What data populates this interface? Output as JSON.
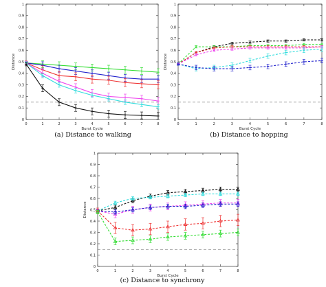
{
  "chart_data": [
    {
      "type": "line",
      "caption": "(a)  Distance to walking",
      "xlabel": "Burst Cycle",
      "ylabel": "Distance",
      "xlim": [
        0,
        8
      ],
      "ylim": [
        0,
        1
      ],
      "xticks": [
        "0",
        "1",
        "2",
        "3",
        "4",
        "5",
        "6",
        "7",
        "8"
      ],
      "yticks": [
        "0",
        "0.1",
        "0.2",
        "0.3",
        "0.4",
        "0.5",
        "0.6",
        "0.7",
        "0.8",
        "0.9",
        "1"
      ],
      "reference_line": 0.15,
      "x": [
        0,
        1,
        2,
        3,
        4,
        5,
        6,
        7,
        8
      ],
      "series": [
        {
          "color": "#33dd33",
          "dashed": false,
          "marker": "plus",
          "values": [
            0.49,
            0.48,
            0.47,
            0.46,
            0.45,
            0.44,
            0.43,
            0.42,
            0.41
          ],
          "err": 0.03
        },
        {
          "color": "#2222cc",
          "dashed": false,
          "marker": "plus",
          "values": [
            0.49,
            0.47,
            0.44,
            0.42,
            0.4,
            0.38,
            0.36,
            0.35,
            0.35
          ],
          "err": 0.03
        },
        {
          "color": "#ee3333",
          "dashed": false,
          "marker": "plus",
          "values": [
            0.49,
            0.43,
            0.38,
            0.37,
            0.35,
            0.34,
            0.32,
            0.31,
            0.3
          ],
          "err": 0.035
        },
        {
          "color": "#ee44ee",
          "dashed": false,
          "marker": "plus",
          "values": [
            0.49,
            0.4,
            0.33,
            0.28,
            0.23,
            0.2,
            0.19,
            0.18,
            0.16
          ],
          "err": 0.03
        },
        {
          "color": "#33dddd",
          "dashed": false,
          "marker": "plus",
          "values": [
            0.49,
            0.38,
            0.3,
            0.25,
            0.21,
            0.18,
            0.15,
            0.13,
            0.11
          ],
          "err": 0.02
        },
        {
          "color": "#111111",
          "dashed": false,
          "marker": "plus",
          "values": [
            0.48,
            0.27,
            0.15,
            0.1,
            0.07,
            0.05,
            0.04,
            0.035,
            0.03
          ],
          "err": 0.03
        }
      ]
    },
    {
      "type": "line",
      "caption": "(b)  Distance to hopping",
      "xlabel": "Burst Cycle",
      "ylabel": "Distance",
      "xlim": [
        0,
        8
      ],
      "ylim": [
        0,
        1
      ],
      "xticks": [
        "0",
        "1",
        "2",
        "3",
        "4",
        "5",
        "6",
        "7",
        "8"
      ],
      "yticks": [
        "0",
        "0.1",
        "0.2",
        "0.3",
        "0.4",
        "0.5",
        "0.6",
        "0.7",
        "0.8",
        "0.9",
        "1"
      ],
      "reference_line": 0.15,
      "x": [
        0,
        1,
        2,
        3,
        4,
        5,
        6,
        7,
        8
      ],
      "series": [
        {
          "color": "#111111",
          "dashed": true,
          "marker": "plus",
          "values": [
            0.48,
            0.58,
            0.63,
            0.66,
            0.67,
            0.68,
            0.68,
            0.69,
            0.69
          ],
          "err": 0.01
        },
        {
          "color": "#33dd33",
          "dashed": true,
          "marker": "plus",
          "values": [
            0.48,
            0.63,
            0.63,
            0.63,
            0.64,
            0.64,
            0.64,
            0.65,
            0.65
          ],
          "err": 0.01
        },
        {
          "color": "#ee3333",
          "dashed": true,
          "marker": "plus",
          "values": [
            0.48,
            0.58,
            0.62,
            0.63,
            0.63,
            0.63,
            0.63,
            0.63,
            0.63
          ],
          "err": 0.01
        },
        {
          "color": "#ee44ee",
          "dashed": true,
          "marker": "plus",
          "values": [
            0.48,
            0.56,
            0.6,
            0.61,
            0.62,
            0.62,
            0.62,
            0.62,
            0.63
          ],
          "err": 0.01
        },
        {
          "color": "#33dddd",
          "dashed": true,
          "marker": "plus",
          "values": [
            0.48,
            0.44,
            0.45,
            0.47,
            0.51,
            0.55,
            0.58,
            0.6,
            0.61
          ],
          "err": 0.02
        },
        {
          "color": "#2222cc",
          "dashed": true,
          "marker": "plus",
          "values": [
            0.48,
            0.45,
            0.44,
            0.44,
            0.45,
            0.46,
            0.48,
            0.5,
            0.51
          ],
          "err": 0.02
        }
      ]
    },
    {
      "type": "line",
      "caption": "(c)  Distance to synchrony",
      "xlabel": "Burst Cycle",
      "ylabel": "Distance",
      "xlim": [
        0,
        8
      ],
      "ylim": [
        0,
        1
      ],
      "xticks": [
        "0",
        "1",
        "2",
        "3",
        "4",
        "5",
        "6",
        "7",
        "8"
      ],
      "yticks": [
        "0",
        "0.1",
        "0.2",
        "0.3",
        "0.4",
        "0.5",
        "0.6",
        "0.7",
        "0.8",
        "0.9",
        "1"
      ],
      "reference_line": 0.15,
      "x": [
        0,
        1,
        2,
        3,
        4,
        5,
        6,
        7,
        8
      ],
      "series": [
        {
          "color": "#111111",
          "dashed": true,
          "marker": "triangle",
          "values": [
            0.49,
            0.52,
            0.58,
            0.62,
            0.65,
            0.66,
            0.67,
            0.68,
            0.68
          ],
          "err": 0.02
        },
        {
          "color": "#33dddd",
          "dashed": true,
          "marker": "triangle",
          "values": [
            0.49,
            0.56,
            0.6,
            0.61,
            0.62,
            0.63,
            0.64,
            0.64,
            0.64
          ],
          "err": 0.015
        },
        {
          "color": "#ee44ee",
          "dashed": true,
          "marker": "triangle",
          "values": [
            0.49,
            0.46,
            0.5,
            0.52,
            0.53,
            0.54,
            0.55,
            0.56,
            0.56
          ],
          "err": 0.03
        },
        {
          "color": "#2222cc",
          "dashed": true,
          "marker": "triangle",
          "values": [
            0.49,
            0.48,
            0.5,
            0.52,
            0.53,
            0.53,
            0.54,
            0.55,
            0.55
          ],
          "err": 0.02
        },
        {
          "color": "#ee3333",
          "dashed": true,
          "marker": "triangle",
          "values": [
            0.49,
            0.34,
            0.32,
            0.33,
            0.35,
            0.37,
            0.38,
            0.4,
            0.41
          ],
          "err": 0.05
        },
        {
          "color": "#33dd33",
          "dashed": true,
          "marker": "triangle",
          "values": [
            0.48,
            0.22,
            0.23,
            0.24,
            0.26,
            0.27,
            0.28,
            0.29,
            0.3
          ],
          "err": 0.03
        }
      ]
    }
  ]
}
